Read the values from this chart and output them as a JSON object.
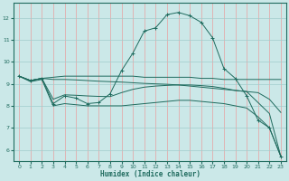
{
  "xlabel": "Humidex (Indice chaleur)",
  "bg_color": "#cbe8e8",
  "line_color": "#1f6b5e",
  "xlim": [
    -0.5,
    23.5
  ],
  "ylim": [
    5.5,
    12.7
  ],
  "xticks": [
    0,
    1,
    2,
    3,
    4,
    5,
    6,
    7,
    8,
    9,
    10,
    11,
    12,
    13,
    14,
    15,
    16,
    17,
    18,
    19,
    20,
    21,
    22,
    23
  ],
  "yticks": [
    6,
    7,
    8,
    9,
    10,
    11,
    12
  ],
  "series1_x": [
    0,
    1,
    2,
    3,
    4,
    5,
    6,
    7,
    8,
    9,
    10,
    11,
    12,
    13,
    14,
    15,
    16,
    17,
    18,
    19,
    20,
    21,
    22,
    23
  ],
  "series1_y": [
    9.35,
    9.15,
    9.25,
    9.3,
    9.35,
    9.35,
    9.35,
    9.35,
    9.35,
    9.35,
    9.35,
    9.3,
    9.3,
    9.3,
    9.3,
    9.3,
    9.25,
    9.25,
    9.2,
    9.2,
    9.2,
    9.2,
    9.2,
    9.2
  ],
  "series2_x": [
    0,
    1,
    2,
    3,
    4,
    5,
    6,
    7,
    8,
    9,
    10,
    11,
    12,
    13,
    14,
    15,
    16,
    17,
    18,
    19,
    20,
    21,
    22,
    23
  ],
  "series2_y": [
    9.35,
    9.15,
    9.25,
    8.1,
    8.45,
    8.35,
    8.1,
    8.15,
    8.55,
    9.6,
    10.4,
    11.4,
    11.55,
    12.15,
    12.25,
    12.1,
    11.8,
    11.1,
    9.7,
    9.25,
    8.45,
    7.35,
    7.0,
    5.7
  ],
  "series3_x": [
    0,
    1,
    2,
    3,
    4,
    5,
    6,
    7,
    8,
    9,
    10,
    11,
    12,
    13,
    14,
    15,
    16,
    17,
    18,
    19,
    20,
    21,
    22,
    23
  ],
  "series3_y": [
    9.35,
    9.15,
    9.25,
    9.2,
    9.2,
    9.18,
    9.15,
    9.12,
    9.1,
    9.08,
    9.05,
    9.02,
    9.0,
    8.98,
    8.95,
    8.9,
    8.85,
    8.8,
    8.75,
    8.7,
    8.65,
    8.6,
    8.3,
    7.7
  ],
  "series4_x": [
    0,
    1,
    2,
    3,
    4,
    5,
    6,
    7,
    8,
    9,
    10,
    11,
    12,
    13,
    14,
    15,
    16,
    17,
    18,
    19,
    20,
    21,
    22,
    23
  ],
  "series4_y": [
    9.35,
    9.15,
    9.25,
    8.3,
    8.5,
    8.48,
    8.45,
    8.43,
    8.42,
    8.6,
    8.75,
    8.85,
    8.9,
    8.93,
    8.95,
    8.95,
    8.92,
    8.88,
    8.8,
    8.7,
    8.65,
    8.15,
    7.65,
    5.7
  ],
  "series5_x": [
    0,
    1,
    2,
    3,
    4,
    5,
    6,
    7,
    8,
    9,
    10,
    11,
    12,
    13,
    14,
    15,
    16,
    17,
    18,
    19,
    20,
    21,
    22,
    23
  ],
  "series5_y": [
    9.35,
    9.1,
    9.2,
    8.0,
    8.1,
    8.05,
    8.0,
    8.0,
    8.0,
    8.0,
    8.05,
    8.1,
    8.15,
    8.2,
    8.25,
    8.25,
    8.2,
    8.15,
    8.1,
    8.0,
    7.9,
    7.5,
    7.0,
    5.7
  ]
}
